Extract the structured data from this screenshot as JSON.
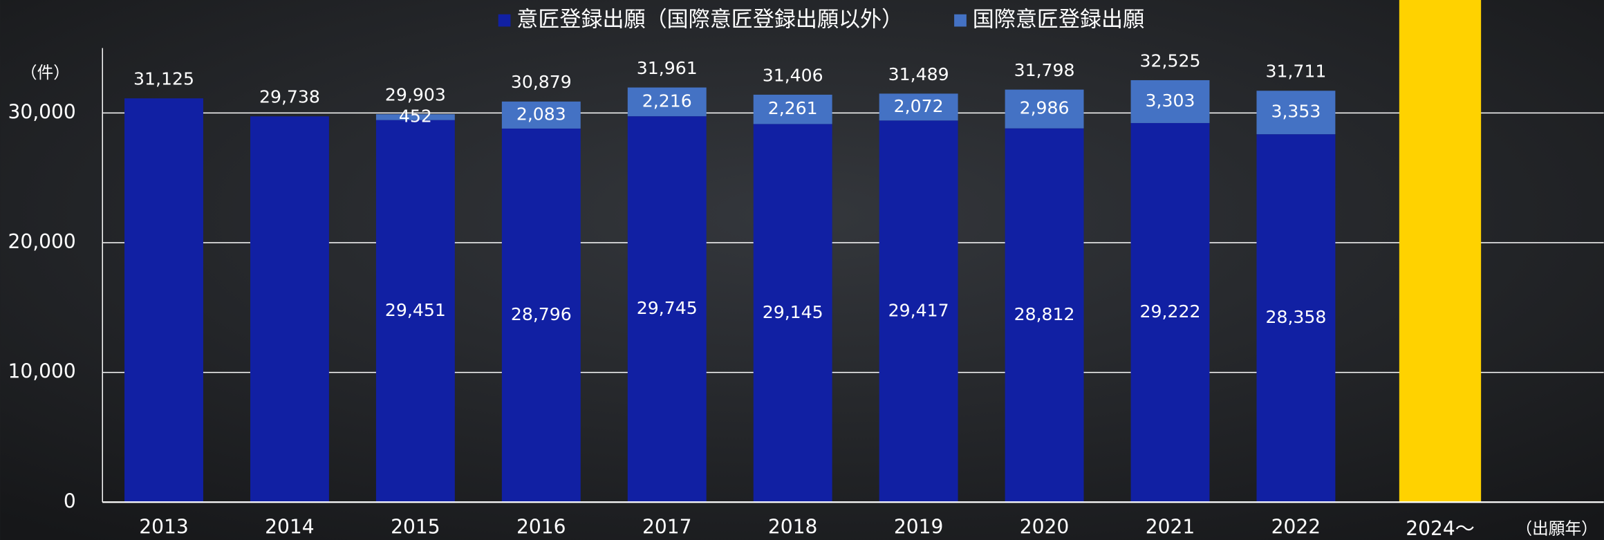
{
  "chart_data": {
    "type": "stacked_bar",
    "y_unit_label": "（件）",
    "x_unit_label": "（出願年）",
    "categories": [
      "2013",
      "2014",
      "2015",
      "2016",
      "2017",
      "2018",
      "2019",
      "2020",
      "2021",
      "2022",
      "2024～"
    ],
    "series": [
      {
        "name": "意匠登録出願（国際意匠登録出願以外）",
        "color": "#1120a3",
        "values": [
          31125,
          29738,
          29451,
          28796,
          29745,
          29145,
          29417,
          28812,
          29222,
          28358,
          null
        ],
        "value_labels": [
          null,
          null,
          "29,451",
          "28,796",
          "29,745",
          "29,145",
          "29,417",
          "28,812",
          "29,222",
          "28,358",
          null
        ]
      },
      {
        "name": "国際意匠登録出願",
        "color": "#4472c4",
        "values": [
          null,
          null,
          452,
          2083,
          2216,
          2261,
          2072,
          2986,
          3303,
          3353,
          null
        ],
        "value_labels": [
          null,
          null,
          "452",
          "2,083",
          "2,216",
          "2,261",
          "2,072",
          "2,986",
          "3,303",
          "3,353",
          null
        ]
      }
    ],
    "total_labels": [
      "31,125",
      "29,738",
      "29,903",
      "30,879",
      "31,961",
      "31,406",
      "31,489",
      "31,798",
      "32,525",
      "31,711",
      null
    ],
    "highlight_color": "#ffd200",
    "ylim": [
      0,
      35000
    ],
    "yticks": [
      0,
      {
        "value": 10000,
        "label": "10,000"
      },
      {
        "value": 20000,
        "label": "20,000"
      },
      {
        "value": 30000,
        "label": "30,000"
      }
    ],
    "grid": true,
    "legend": "top"
  }
}
